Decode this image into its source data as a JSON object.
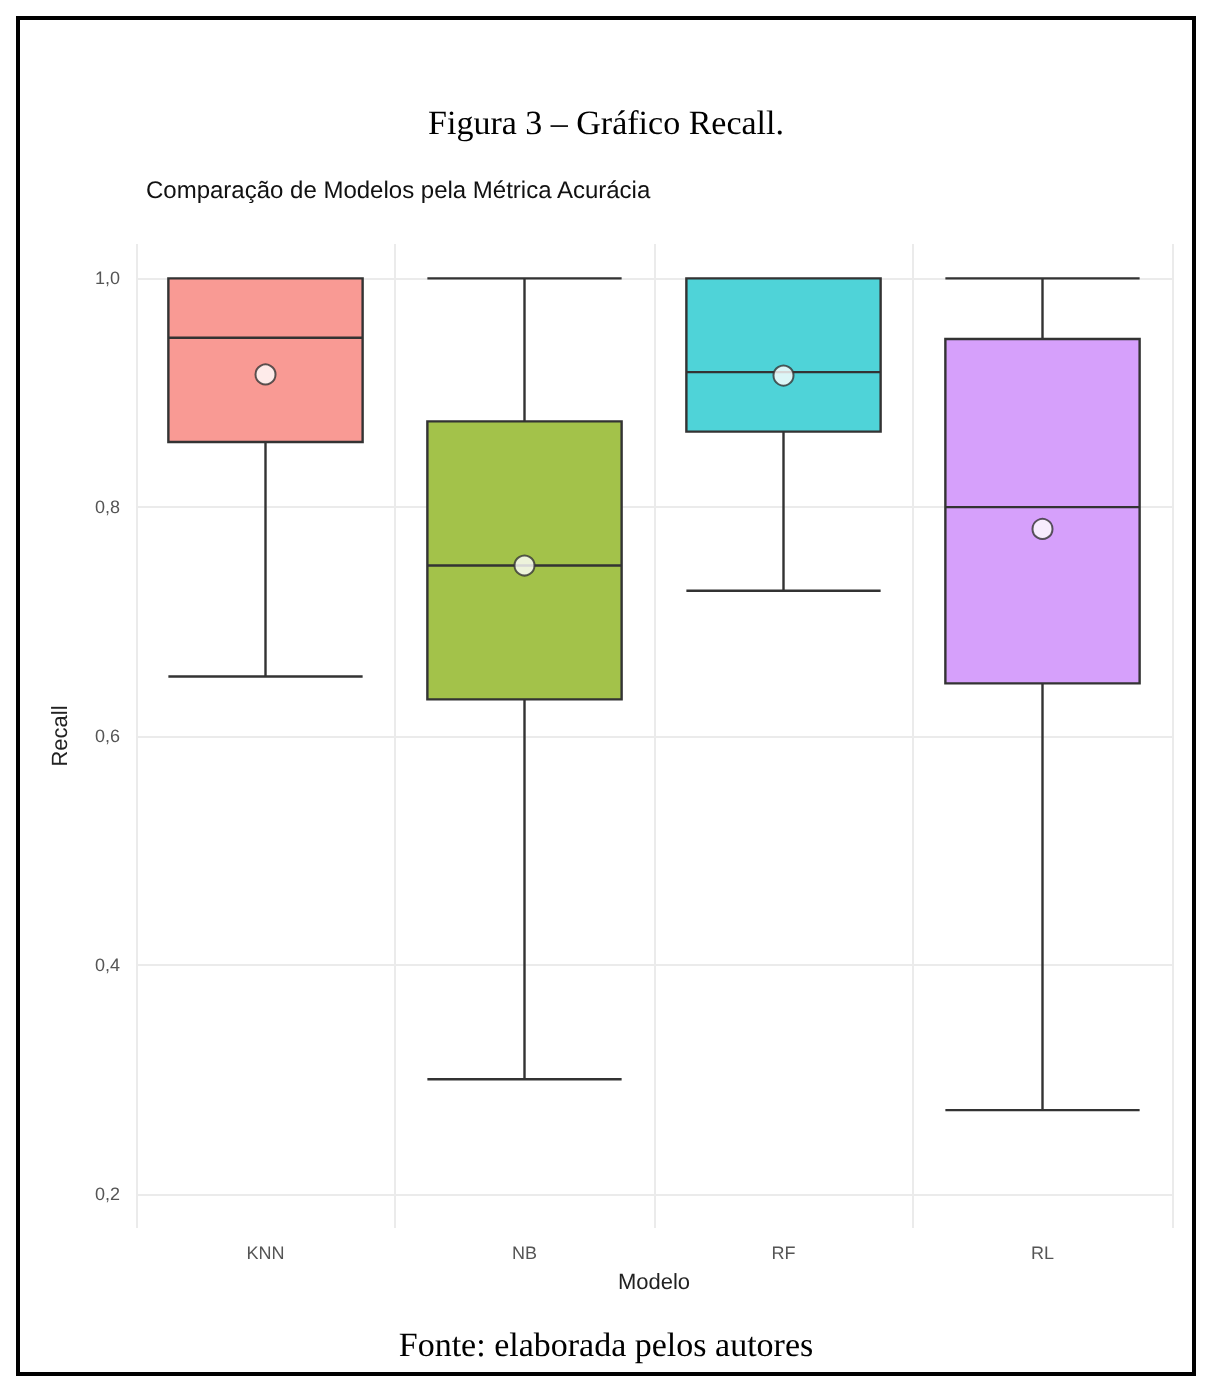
{
  "chart_data": {
    "type": "box",
    "title": "Figura 3 – Gráfico Recall.",
    "subtitle": "Comparação de Modelos pela Métrica Acurácia",
    "xlabel": "Modelo",
    "ylabel": "Recall",
    "annotations": [
      "Fonte: elaborada pelos autores"
    ],
    "categories": [
      "KNN",
      "NB",
      "RF",
      "RL"
    ],
    "colors": [
      "#f99a94",
      "#a3c24a",
      "#4fd3d8",
      "#d6a0fb"
    ],
    "boxes": [
      {
        "low": 0.652,
        "q1": 0.857,
        "median": 0.948,
        "q3": 1.0,
        "high": 1.0,
        "mean": 0.916
      },
      {
        "low": 0.3,
        "q1": 0.632,
        "median": 0.749,
        "q3": 0.875,
        "high": 1.0,
        "mean": 0.749
      },
      {
        "low": 0.727,
        "q1": 0.866,
        "median": 0.918,
        "q3": 1.0,
        "high": 1.0,
        "mean": 0.915
      },
      {
        "low": 0.273,
        "q1": 0.646,
        "median": 0.8,
        "q3": 0.947,
        "high": 1.0,
        "mean": 0.781
      }
    ],
    "ylim": [
      0.17,
      1.03
    ],
    "yticks": [
      {
        "value": 0.2,
        "label": "0,2"
      },
      {
        "value": 0.4,
        "label": "0,4"
      },
      {
        "value": 0.6,
        "label": "0,6"
      },
      {
        "value": 0.8,
        "label": "0,8"
      },
      {
        "value": 1.0,
        "label": "1,0"
      }
    ],
    "grid": true,
    "marker": "circle"
  }
}
